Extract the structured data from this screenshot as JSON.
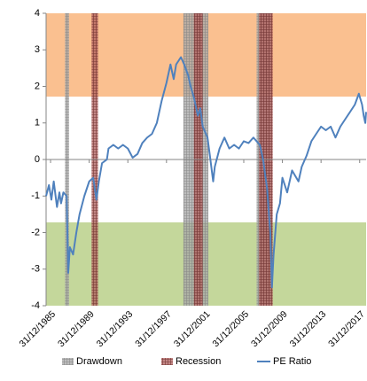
{
  "chart_data": {
    "type": "line",
    "x": [
      "1985-07-15",
      "1985-10-31",
      "1986-01-31",
      "1986-04-30",
      "1986-08-31",
      "1986-11-30",
      "1987-01-31",
      "1987-04-30",
      "1987-08-31",
      "1987-10-31",
      "1987-12-31",
      "1988-04-30",
      "1988-08-31",
      "1988-12-31",
      "1989-06-30",
      "1989-12-31",
      "1990-05-31",
      "1990-09-30",
      "1990-12-31",
      "1991-04-30",
      "1991-10-31",
      "1991-12-31",
      "1992-06-30",
      "1992-12-31",
      "1993-06-30",
      "1993-12-31",
      "1994-06-30",
      "1994-12-31",
      "1995-06-30",
      "1995-12-31",
      "1996-06-30",
      "1996-12-31",
      "1997-06-30",
      "1997-12-31",
      "1998-05-31",
      "1998-09-30",
      "1998-12-31",
      "1999-06-30",
      "1999-10-31",
      "2000-03-31",
      "2000-06-30",
      "2000-10-31",
      "2001-03-31",
      "2001-06-30",
      "2001-09-30",
      "2002-03-31",
      "2002-06-30",
      "2002-10-31",
      "2002-12-31",
      "2003-06-30",
      "2003-12-31",
      "2004-06-30",
      "2004-12-31",
      "2005-06-30",
      "2005-12-31",
      "2006-06-30",
      "2006-12-31",
      "2007-04-30",
      "2007-08-31",
      "2007-12-31",
      "2008-05-31",
      "2008-09-30",
      "2008-11-30",
      "2009-01-31",
      "2009-05-31",
      "2009-09-30",
      "2009-12-31",
      "2010-06-30",
      "2010-12-31",
      "2011-08-31",
      "2011-12-31",
      "2012-06-30",
      "2012-12-31",
      "2013-06-30",
      "2013-12-31",
      "2014-06-30",
      "2014-12-31",
      "2015-06-30",
      "2015-12-31",
      "2016-06-30",
      "2016-12-31",
      "2017-06-30",
      "2017-11-30",
      "2018-03-31",
      "2018-05-31",
      "2018-07-31",
      "2018-08-31"
    ],
    "series": [
      {
        "name": "PE Ratio",
        "color": "#4f81bd",
        "values": [
          -1.0,
          -0.7,
          -1.1,
          -0.6,
          -1.3,
          -0.9,
          -1.2,
          -0.9,
          -1.0,
          -3.1,
          -2.4,
          -2.6,
          -2.0,
          -1.5,
          -1.0,
          -0.6,
          -0.5,
          -1.1,
          -0.6,
          -0.1,
          0.0,
          0.3,
          0.4,
          0.3,
          0.4,
          0.3,
          0.05,
          0.15,
          0.45,
          0.6,
          0.7,
          1.0,
          1.6,
          2.1,
          2.6,
          2.2,
          2.6,
          2.8,
          2.6,
          2.3,
          2.0,
          1.7,
          1.2,
          1.4,
          0.9,
          0.6,
          0.1,
          -0.6,
          -0.2,
          0.3,
          0.6,
          0.3,
          0.4,
          0.3,
          0.5,
          0.45,
          0.6,
          0.5,
          0.4,
          0.0,
          -0.8,
          -2.0,
          -3.5,
          -2.6,
          -1.5,
          -1.2,
          -0.5,
          -0.9,
          -0.3,
          -0.6,
          -0.2,
          0.1,
          0.5,
          0.7,
          0.9,
          0.8,
          0.9,
          0.6,
          0.9,
          1.1,
          1.3,
          1.5,
          1.8,
          1.5,
          1.2,
          1.0,
          1.3
        ]
      }
    ],
    "periods": [
      {
        "name": "Drawdown",
        "color": "#a6a6a6",
        "line_color": "#7f7f7f",
        "ranges": [
          [
            "1987-06-30",
            "1987-11-30"
          ],
          [
            "1999-10-01",
            "2002-04-30"
          ],
          [
            "2007-04-30",
            "2008-10-31"
          ]
        ]
      },
      {
        "name": "Recession",
        "color": "#b0605e",
        "line_color": "#632523",
        "ranges": [
          [
            "1990-03-31",
            "1990-11-30"
          ],
          [
            "2000-10-31",
            "2001-09-30"
          ],
          [
            "2007-07-31",
            "2008-12-31"
          ]
        ]
      }
    ],
    "y_bands": [
      {
        "from": 1.72,
        "to": 4,
        "color": "#fac090"
      },
      {
        "from": -4,
        "to": -1.72,
        "color": "#c4d79b"
      }
    ],
    "xlim": [
      "1985-07-15",
      "2018-08-31"
    ],
    "xticks": [
      {
        "value": "1985-12-31",
        "label": "31/12/1985"
      },
      {
        "value": "1989-12-31",
        "label": "31/12/1989"
      },
      {
        "value": "1993-12-31",
        "label": "31/12/1993"
      },
      {
        "value": "1997-12-31",
        "label": "31/12/1997"
      },
      {
        "value": "2001-12-31",
        "label": "31/12/2001"
      },
      {
        "value": "2005-12-31",
        "label": "31/12/2005"
      },
      {
        "value": "2009-12-31",
        "label": "31/12/2009"
      },
      {
        "value": "2013-12-31",
        "label": "31/12/2013"
      },
      {
        "value": "2017-12-31",
        "label": "31/12/2017"
      }
    ],
    "ylim": [
      -4,
      4
    ],
    "yticks": [
      -4,
      -3,
      -2,
      -1,
      0,
      1,
      2,
      3,
      4
    ]
  }
}
